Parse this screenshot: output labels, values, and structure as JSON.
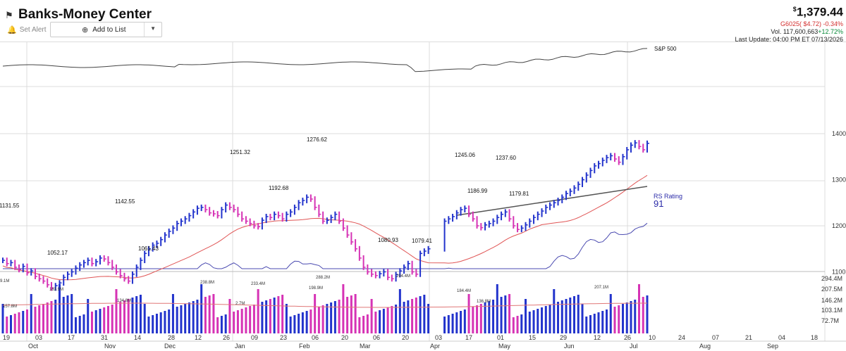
{
  "header": {
    "title": "Banks-Money Center",
    "set_alert_label": "Set Alert",
    "add_to_list_label": "Add to List",
    "price_currency": "$",
    "price": "1,379.44",
    "change": "G6025( $4.72) -0.34%",
    "volume_label": "Vol. 117,600,663",
    "volume_change": "+12.72%",
    "last_update": "Last Update: 04:00 PM ET 07/13/2026"
  },
  "icons": {
    "flag": "flag-icon",
    "bell": "bell-icon",
    "plus": "plus-circle-icon",
    "caret": "chevron-down-icon"
  },
  "colors": {
    "up_bar": "#2233cc",
    "down_bar": "#d633b5",
    "ma_red": "#e05555",
    "rs_line": "#4a4ab0",
    "sp500_line": "#444444",
    "trend_line": "#555555",
    "volume_ma": "#e07777"
  },
  "chart_data": {
    "type": "candlestick",
    "price_axis": {
      "ticks": [
        1100,
        1200,
        1300,
        1400
      ],
      "range": [
        1035,
        1510
      ]
    },
    "x_tick_labels": [
      "19",
      "Oct",
      "03",
      "17",
      "31",
      "Nov",
      "14",
      "28",
      "Dec",
      "12",
      "26",
      "Jan",
      "09",
      "23",
      "Feb",
      "06",
      "20",
      "Mar",
      "06",
      "20",
      "Apr",
      "03",
      "17",
      "May",
      "01",
      "15",
      "Jun",
      "29",
      "12",
      "26",
      "Jul",
      "10",
      "24",
      "07",
      "Aug",
      "21",
      "04",
      "Sep",
      "18"
    ],
    "price_labels": [
      {
        "label": "1131.55",
        "value": 1131.55
      },
      {
        "label": "1052.17",
        "value": 1052.17
      },
      {
        "label": "1142.55",
        "value": 1142.55
      },
      {
        "label": "1061.43",
        "value": 1061.43
      },
      {
        "label": "1251.32",
        "value": 1251.32
      },
      {
        "label": "1192.68",
        "value": 1192.68
      },
      {
        "label": "1276.62",
        "value": 1276.62
      },
      {
        "label": "1080.93",
        "value": 1080.93
      },
      {
        "label": "1079.41",
        "value": 1079.41
      },
      {
        "label": "1245.06",
        "value": 1245.06
      },
      {
        "label": "1186.99",
        "value": 1186.99
      },
      {
        "label": "1237.60",
        "value": 1237.6
      },
      {
        "label": "1179.81",
        "value": 1179.81
      }
    ],
    "price_series_closes": [
      1125,
      1118,
      1120,
      1110,
      1105,
      1112,
      1098,
      1102,
      1090,
      1085,
      1080,
      1072,
      1065,
      1070,
      1076,
      1088,
      1095,
      1100,
      1108,
      1115,
      1120,
      1125,
      1118,
      1122,
      1130,
      1128,
      1120,
      1110,
      1100,
      1092,
      1085,
      1080,
      1095,
      1110,
      1125,
      1140,
      1150,
      1158,
      1162,
      1170,
      1180,
      1188,
      1195,
      1205,
      1210,
      1215,
      1222,
      1230,
      1238,
      1240,
      1235,
      1228,
      1226,
      1222,
      1235,
      1245,
      1240,
      1235,
      1225,
      1215,
      1210,
      1205,
      1200,
      1198,
      1212,
      1220,
      1218,
      1225,
      1222,
      1215,
      1225,
      1230,
      1240,
      1250,
      1255,
      1262,
      1258,
      1240,
      1225,
      1210,
      1212,
      1218,
      1225,
      1210,
      1195,
      1180,
      1165,
      1150,
      1130,
      1110,
      1100,
      1095,
      1092,
      1096,
      1100,
      1088,
      1085,
      1094,
      1102,
      1110,
      1118,
      1100,
      1095,
      1140,
      1145,
      1150,
      null,
      null,
      null,
      1210,
      1215,
      1220,
      1228,
      1235,
      1238,
      1225,
      1215,
      1200,
      1196,
      1202,
      1205,
      1210,
      1218,
      1225,
      1230,
      1215,
      1200,
      1192,
      1195,
      1202,
      1210,
      1218,
      1225,
      1232,
      1240,
      1245,
      1250,
      1255,
      1262,
      1270,
      1275,
      1282,
      1290,
      1300,
      1310,
      1320,
      1330,
      1335,
      1342,
      1348,
      1352,
      1345,
      1338,
      1350,
      1365,
      1375,
      1380,
      1372,
      1365,
      1379
    ],
    "volume_axis": {
      "ticks": [
        "294.4M",
        "207.5M",
        "146.2M",
        "103.1M",
        "72.7M"
      ]
    },
    "volume_labels": [
      "9.1M",
      "157.8M",
      "183.9M",
      "134.8M",
      "238.8M",
      "2.7M",
      "233.4M",
      "198.9M",
      "288.2M",
      "294.4M",
      "184.4M",
      "136.8M",
      "207.1M"
    ],
    "sp500_label": "S&P 500",
    "rs_label": "RS Rating",
    "rs_value": "91"
  }
}
